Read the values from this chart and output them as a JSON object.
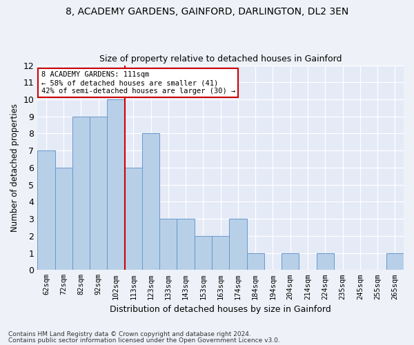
{
  "title1": "8, ACADEMY GARDENS, GAINFORD, DARLINGTON, DL2 3EN",
  "title2": "Size of property relative to detached houses in Gainford",
  "xlabel": "Distribution of detached houses by size in Gainford",
  "ylabel": "Number of detached properties",
  "categories": [
    "62sqm",
    "72sqm",
    "82sqm",
    "92sqm",
    "102sqm",
    "113sqm",
    "123sqm",
    "133sqm",
    "143sqm",
    "153sqm",
    "163sqm",
    "174sqm",
    "184sqm",
    "194sqm",
    "204sqm",
    "214sqm",
    "224sqm",
    "235sqm",
    "245sqm",
    "255sqm",
    "265sqm"
  ],
  "values": [
    7,
    6,
    9,
    9,
    10,
    6,
    8,
    3,
    3,
    2,
    2,
    3,
    1,
    0,
    1,
    0,
    1,
    0,
    0,
    0,
    1
  ],
  "bar_color": "#b8cfe8",
  "bar_edge_color": "#6699cc",
  "marker_index": 5,
  "marker_color": "#cc0000",
  "ylim": [
    0,
    12
  ],
  "yticks": [
    0,
    1,
    2,
    3,
    4,
    5,
    6,
    7,
    8,
    9,
    10,
    11,
    12
  ],
  "annotation_title": "8 ACADEMY GARDENS: 111sqm",
  "annotation_line1": "← 58% of detached houses are smaller (41)",
  "annotation_line2": "42% of semi-detached houses are larger (30) →",
  "footer1": "Contains HM Land Registry data © Crown copyright and database right 2024.",
  "footer2": "Contains public sector information licensed under the Open Government Licence v3.0.",
  "bg_color": "#eef2f8",
  "plot_bg_color": "#e4eaf6"
}
